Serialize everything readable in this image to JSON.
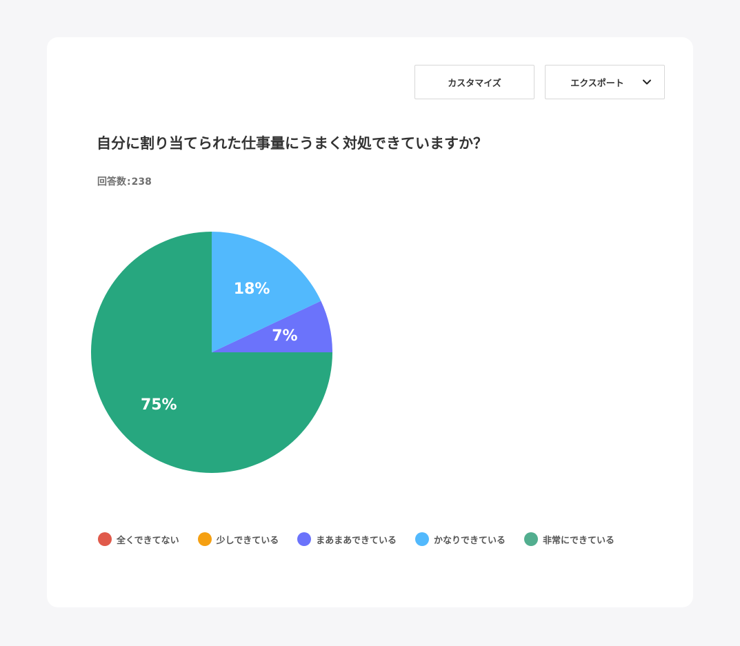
{
  "toolbar": {
    "customize_label": "カスタマイズ",
    "export_label": "エクスポート"
  },
  "question": {
    "title": "自分に割り当てられた仕事量にうまく対処できていますか？",
    "count_label": "回答数",
    "count_value": "238"
  },
  "chart_data": {
    "type": "pie",
    "categories": [
      "全くできてない",
      "少しできている",
      "まあまあできている",
      "かなりできている",
      "非常にできている"
    ],
    "values": [
      0,
      0,
      7,
      18,
      75
    ],
    "labels": [
      "",
      "",
      "7%",
      "18%",
      "75%"
    ],
    "colors": [
      "#e05a4b",
      "#f5a012",
      "#6b73fb",
      "#52b9fd",
      "#27a77f"
    ],
    "legend_colors": [
      "#e05a4b",
      "#f5a012",
      "#6b73fb",
      "#52b9fd",
      "#52ae8f"
    ],
    "start_angle": "90° clockwise (3 o'clock), slices drawn counter-clockwise",
    "legend_position": "bottom-left"
  }
}
